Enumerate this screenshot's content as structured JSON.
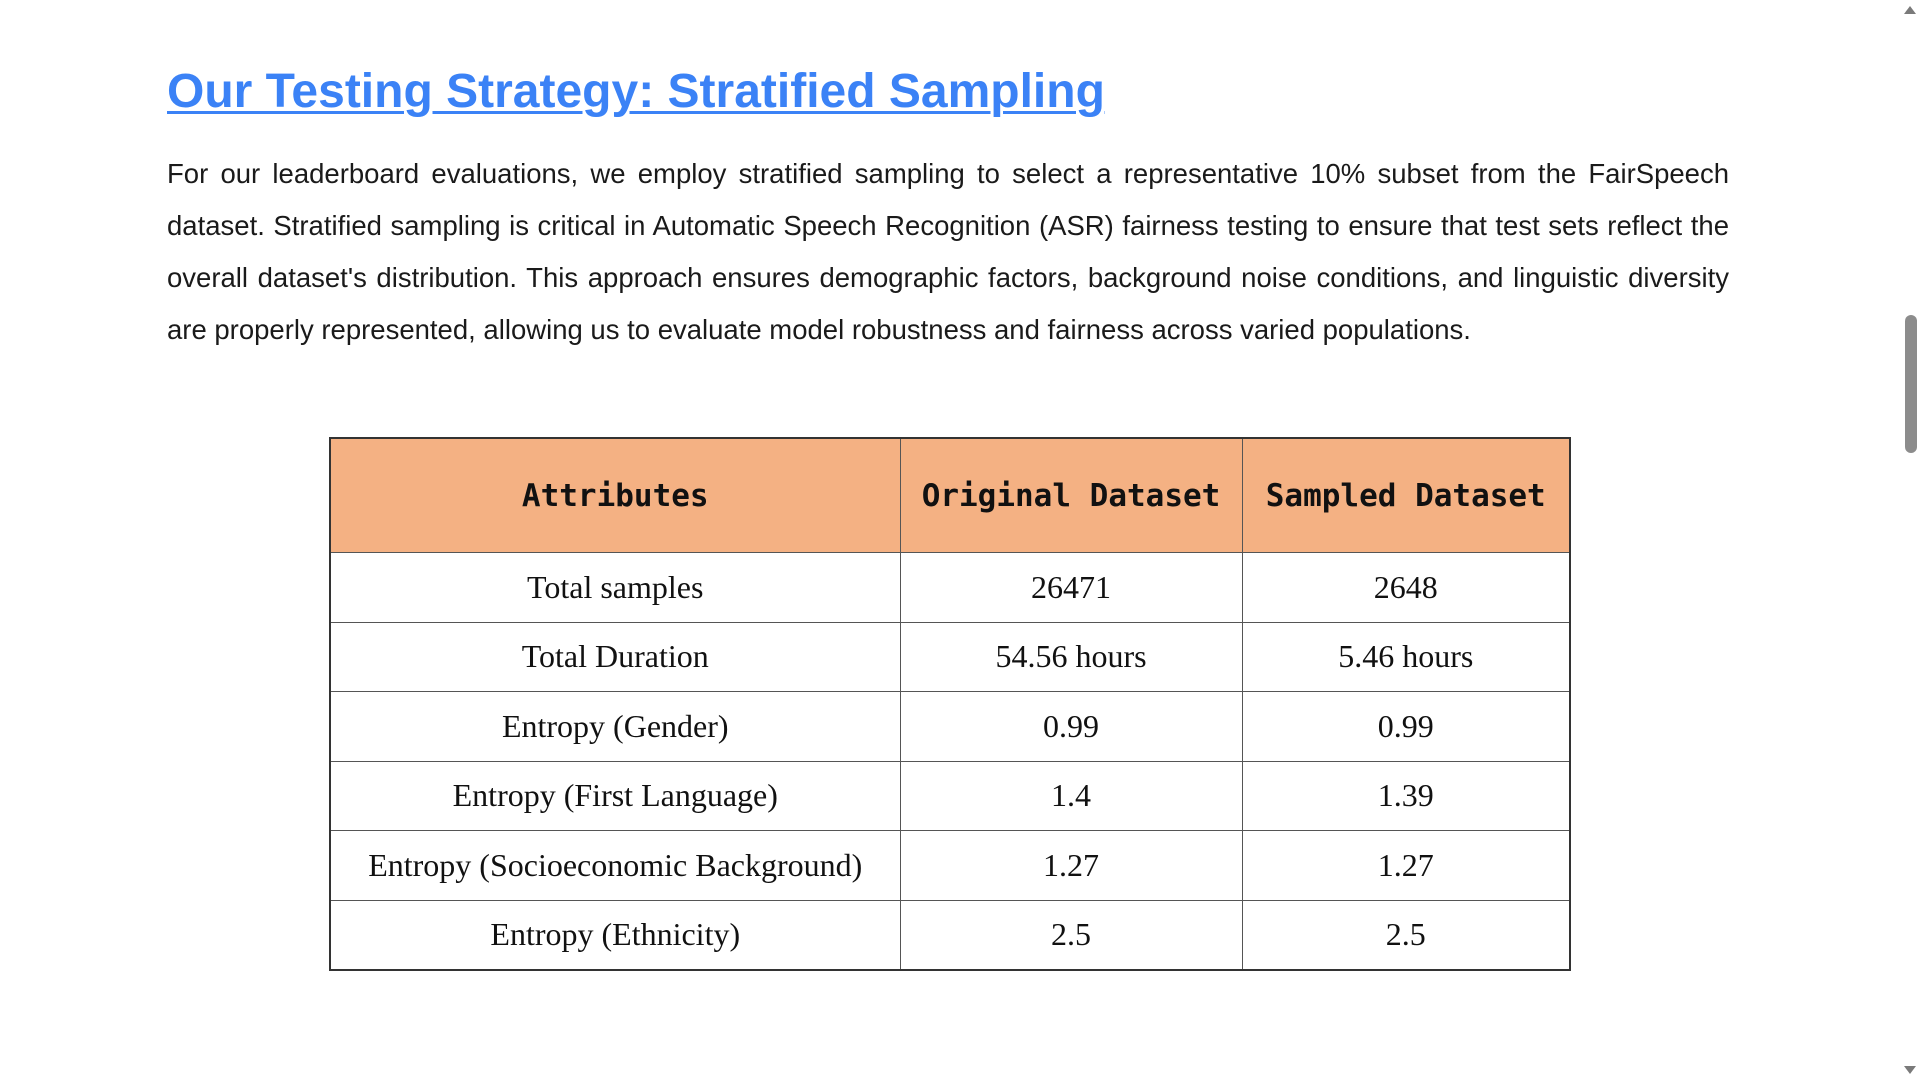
{
  "section": {
    "title": "Our Testing Strategy: Stratified Sampling",
    "intro": "For our leaderboard evaluations, we employ stratified sampling to select a representative 10% subset from the FairSpeech dataset. Stratified sampling is critical in Automatic Speech Recognition (ASR) fairness testing to ensure that test sets reflect the overall dataset's distribution. This approach ensures demographic factors, background noise conditions, and linguistic diversity are properly represented, allowing us to evaluate model robustness and fairness across varied populations."
  },
  "table": {
    "header_bg": "#f4b183",
    "headers": [
      "Attributes",
      "Original Dataset",
      "Sampled Dataset"
    ],
    "rows": [
      [
        "Total samples",
        "26471",
        "2648"
      ],
      [
        "Total Duration",
        "54.56 hours",
        "5.46 hours"
      ],
      [
        "Entropy (Gender)",
        "0.99",
        "0.99"
      ],
      [
        "Entropy (First Language)",
        "1.4",
        "1.39"
      ],
      [
        "Entropy (Socioeconomic Background)",
        "1.27",
        "1.27"
      ],
      [
        "Entropy (Ethnicity)",
        "2.5",
        "2.5"
      ]
    ]
  },
  "theme": {
    "link_color": "#3b82f6",
    "text_color": "#1a1a1a"
  },
  "scrollbar": {
    "icons": [
      "chevron-up-icon",
      "chevron-down-icon"
    ]
  }
}
